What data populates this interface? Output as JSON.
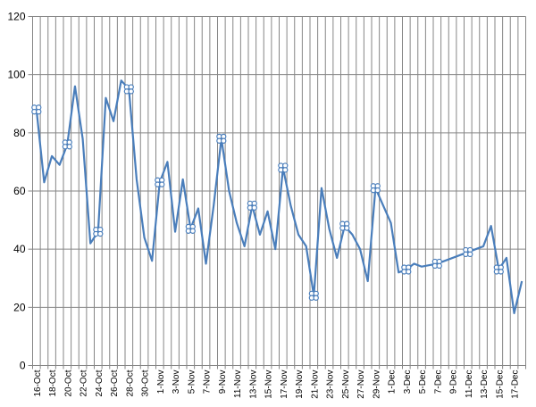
{
  "chart_data": {
    "type": "line",
    "title": "",
    "xlabel": "",
    "ylabel": "",
    "ylim": [
      0,
      120
    ],
    "ytick_step": 20,
    "grid": true,
    "legend": "none",
    "x_tick_labels": [
      "16-Oct",
      "18-Oct",
      "20-Oct",
      "22-Oct",
      "24-Oct",
      "26-Oct",
      "28-Oct",
      "30-Oct",
      "1-Nov",
      "3-Nov",
      "5-Nov",
      "7-Nov",
      "9-Nov",
      "11-Nov",
      "13-Nov",
      "15-Nov",
      "17-Nov",
      "19-Nov",
      "21-Nov",
      "23-Nov",
      "25-Nov",
      "27-Nov",
      "29-Nov",
      "1-Dec",
      "3-Dec",
      "5-Dec",
      "7-Dec",
      "9-Dec",
      "11-Dec",
      "13-Dec",
      "15-Dec",
      "17-Dec"
    ],
    "x_start": "2011-10-16",
    "x_end": "2011-12-18",
    "colors": {
      "line": "#4a7ebb",
      "grid": "#868686",
      "axis": "#868686",
      "marker": "#4a7ebb"
    },
    "series": [
      {
        "points": [
          [
            "2011-10-16",
            88
          ],
          [
            "2011-10-17",
            63
          ],
          [
            "2011-10-18",
            72
          ],
          [
            "2011-10-19",
            69
          ],
          [
            "2011-10-20",
            76
          ],
          [
            "2011-10-21",
            96
          ],
          [
            "2011-10-22",
            78
          ],
          [
            "2011-10-23",
            42
          ],
          [
            "2011-10-24",
            46
          ],
          [
            "2011-10-25",
            92
          ],
          [
            "2011-10-26",
            84
          ],
          [
            "2011-10-27",
            98
          ],
          [
            "2011-10-28",
            95
          ],
          [
            "2011-10-29",
            64
          ],
          [
            "2011-10-30",
            44
          ],
          [
            "2011-10-31",
            36
          ],
          [
            "2011-11-01",
            63
          ],
          [
            "2011-11-02",
            70
          ],
          [
            "2011-11-03",
            46
          ],
          [
            "2011-11-04",
            64
          ],
          [
            "2011-11-05",
            47
          ],
          [
            "2011-11-06",
            54
          ],
          [
            "2011-11-07",
            35
          ],
          [
            "2011-11-08",
            55
          ],
          [
            "2011-11-09",
            78
          ],
          [
            "2011-11-10",
            60
          ],
          [
            "2011-11-11",
            49
          ],
          [
            "2011-11-12",
            41
          ],
          [
            "2011-11-13",
            55
          ],
          [
            "2011-11-14",
            45
          ],
          [
            "2011-11-15",
            53
          ],
          [
            "2011-11-16",
            40
          ],
          [
            "2011-11-17",
            68
          ],
          [
            "2011-11-18",
            55
          ],
          [
            "2011-11-19",
            45
          ],
          [
            "2011-11-20",
            41
          ],
          [
            "2011-11-21",
            24
          ],
          [
            "2011-11-22",
            61
          ],
          [
            "2011-11-23",
            47
          ],
          [
            "2011-11-24",
            37
          ],
          [
            "2011-11-25",
            48
          ],
          [
            "2011-11-26",
            45
          ],
          [
            "2011-11-27",
            40
          ],
          [
            "2011-11-28",
            29
          ],
          [
            "2011-11-29",
            61
          ],
          [
            "2011-12-01",
            49
          ],
          [
            "2011-12-02",
            32
          ],
          [
            "2011-12-03",
            33
          ],
          [
            "2011-12-04",
            35
          ],
          [
            "2011-12-05",
            34
          ],
          [
            "2011-12-07",
            35
          ],
          [
            "2011-12-11",
            39
          ],
          [
            "2011-12-13",
            41
          ],
          [
            "2011-12-14",
            48
          ],
          [
            "2011-12-15",
            33
          ],
          [
            "2011-12-16",
            37
          ],
          [
            "2011-12-17",
            18
          ],
          [
            "2011-12-18",
            29
          ]
        ],
        "marked_dates": [
          "2011-10-16",
          "2011-10-20",
          "2011-10-24",
          "2011-10-28",
          "2011-11-01",
          "2011-11-05",
          "2011-11-09",
          "2011-11-13",
          "2011-11-17",
          "2011-11-21",
          "2011-11-25",
          "2011-11-29",
          "2011-12-03",
          "2011-12-07",
          "2011-12-11",
          "2011-12-15"
        ]
      }
    ]
  }
}
